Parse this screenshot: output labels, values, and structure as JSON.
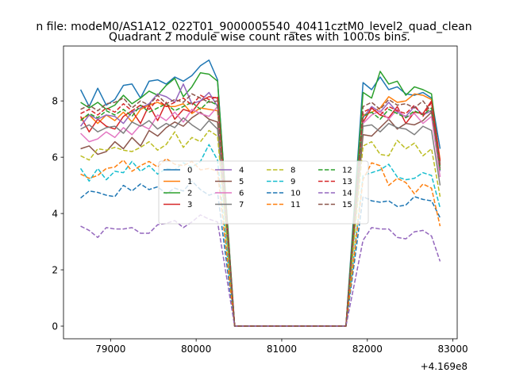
{
  "figure": {
    "suptitle": "n file: modeM0/AS1A12_022T01_9000005540_40411cztM0_level2_quad_clean",
    "title": "Quadrant 2 module wise count rates with 100.0s bins."
  },
  "chart_data": {
    "type": "line",
    "title": "Quadrant 2 module wise count rates with 100.0s bins.",
    "xlabel": "",
    "ylabel": "",
    "x_offset_label": "+4.169e8",
    "xlim": [
      78450,
      83050
    ],
    "ylim": [
      -0.45,
      9.95
    ],
    "xticks": [
      79000,
      80000,
      81000,
      82000,
      83000
    ],
    "xtick_labels": [
      "79000",
      "80000",
      "81000",
      "82000",
      "83000"
    ],
    "yticks": [
      0,
      2,
      4,
      6,
      8
    ],
    "ytick_labels": [
      "0",
      "2",
      "4",
      "6",
      "8"
    ],
    "grid": false,
    "legend": {
      "placement": "center",
      "ncol": 4
    },
    "x": {
      "seg1": [
        78650,
        78750,
        78850,
        78950,
        79050,
        79150,
        79250,
        79350,
        79450,
        79550,
        79650,
        79750,
        79850,
        79950,
        80050,
        80150,
        80250,
        80450
      ],
      "gap": [
        80450,
        81750
      ],
      "seg2": [
        81750,
        81950,
        82050,
        82150,
        82250,
        82350,
        82450,
        82550,
        82650,
        82750,
        82850
      ]
    },
    "series": [
      {
        "name": "0",
        "color": "#1f77b4",
        "dash": "solid",
        "seg1": [
          8.4,
          7.8,
          8.45,
          7.85,
          8.05,
          8.55,
          8.6,
          8.1,
          8.7,
          8.75,
          8.6,
          8.85,
          8.7,
          8.9,
          9.25,
          9.45,
          8.75,
          0.0
        ],
        "seg2": [
          0.0,
          8.65,
          8.4,
          8.85,
          8.4,
          8.5,
          8.25,
          8.2,
          8.3,
          8.1,
          6.3
        ]
      },
      {
        "name": "1",
        "color": "#ff7f0e",
        "dash": "solid",
        "seg1": [
          7.35,
          7.5,
          7.2,
          7.5,
          7.3,
          7.6,
          7.25,
          7.7,
          7.85,
          7.95,
          7.8,
          7.8,
          7.9,
          7.55,
          7.75,
          7.7,
          7.65,
          0.0
        ],
        "seg2": [
          0.0,
          7.5,
          7.6,
          7.75,
          8.15,
          7.95,
          8.0,
          8.25,
          8.2,
          8.05,
          5.9
        ]
      },
      {
        "name": "2",
        "color": "#2ca02c",
        "dash": "solid",
        "seg1": [
          7.95,
          7.75,
          7.95,
          7.7,
          7.85,
          8.2,
          7.9,
          8.1,
          8.35,
          8.2,
          8.55,
          8.8,
          8.15,
          8.5,
          9.0,
          8.95,
          8.7,
          0.0
        ],
        "seg2": [
          0.0,
          8.3,
          8.1,
          9.05,
          8.6,
          8.7,
          8.2,
          8.5,
          8.4,
          8.25,
          5.7
        ]
      },
      {
        "name": "3",
        "color": "#d62728",
        "dash": "solid",
        "seg1": [
          7.45,
          6.9,
          7.35,
          7.1,
          7.0,
          7.45,
          7.65,
          7.2,
          7.85,
          7.3,
          7.95,
          7.35,
          7.7,
          7.6,
          8.0,
          8.15,
          8.1,
          0.0
        ],
        "seg2": [
          0.0,
          7.25,
          7.75,
          7.5,
          7.4,
          7.8,
          7.2,
          7.6,
          7.55,
          8.0,
          5.85
        ]
      },
      {
        "name": "4",
        "color": "#9467bd",
        "dash": "solid",
        "seg1": [
          7.1,
          7.5,
          7.35,
          7.5,
          7.45,
          7.2,
          7.6,
          7.75,
          7.9,
          8.25,
          8.15,
          7.95,
          8.6,
          7.9,
          8.0,
          8.3,
          7.8,
          0.0
        ],
        "seg2": [
          0.0,
          7.4,
          7.8,
          7.6,
          7.95,
          7.6,
          7.45,
          7.8,
          7.5,
          7.65,
          5.5
        ]
      },
      {
        "name": "5",
        "color": "#8c564b",
        "dash": "solid",
        "seg1": [
          6.3,
          6.4,
          6.1,
          6.2,
          6.55,
          6.3,
          6.7,
          6.4,
          6.95,
          6.75,
          7.05,
          7.25,
          7.1,
          7.4,
          7.6,
          7.35,
          7.25,
          0.0
        ],
        "seg2": [
          0.0,
          6.8,
          6.75,
          7.05,
          7.35,
          7.0,
          7.2,
          7.15,
          7.3,
          7.6,
          5.6
        ]
      },
      {
        "name": "6",
        "color": "#e377c2",
        "dash": "solid",
        "seg1": [
          6.85,
          6.55,
          6.65,
          6.9,
          6.7,
          7.05,
          6.8,
          7.15,
          7.0,
          7.5,
          7.3,
          7.6,
          7.25,
          7.7,
          7.55,
          7.45,
          7.8,
          0.0
        ],
        "seg2": [
          0.0,
          7.2,
          7.5,
          7.65,
          7.35,
          7.7,
          7.4,
          7.55,
          7.2,
          7.45,
          5.3
        ]
      },
      {
        "name": "7",
        "color": "#7f7f7f",
        "dash": "solid",
        "seg1": [
          7.0,
          7.15,
          6.9,
          7.05,
          7.1,
          6.85,
          7.25,
          7.1,
          7.3,
          7.0,
          7.2,
          7.05,
          7.4,
          7.15,
          6.95,
          7.3,
          7.0,
          0.0
        ],
        "seg2": [
          0.0,
          7.1,
          7.15,
          6.9,
          7.2,
          7.05,
          7.0,
          6.8,
          7.1,
          6.95,
          5.0
        ]
      },
      {
        "name": "8",
        "color": "#bcbd22",
        "dash": "dashed",
        "seg1": [
          6.05,
          5.9,
          6.3,
          6.25,
          6.35,
          6.25,
          6.2,
          6.35,
          6.55,
          6.25,
          6.45,
          6.9,
          6.35,
          6.7,
          6.55,
          6.95,
          6.75,
          0.0
        ],
        "seg2": [
          0.0,
          6.4,
          6.55,
          6.1,
          6.05,
          6.6,
          6.3,
          6.5,
          6.05,
          6.3,
          4.6
        ]
      },
      {
        "name": "9",
        "color": "#17becf",
        "dash": "dashed",
        "seg1": [
          5.6,
          5.15,
          5.6,
          5.2,
          5.5,
          5.45,
          5.85,
          5.5,
          5.7,
          5.4,
          5.6,
          5.55,
          5.8,
          5.65,
          5.85,
          6.45,
          5.9,
          0.0
        ],
        "seg2": [
          0.0,
          5.35,
          5.45,
          5.55,
          5.75,
          5.3,
          5.2,
          5.25,
          5.45,
          5.35,
          4.2
        ]
      },
      {
        "name": "10",
        "color": "#1f77b4",
        "dash": "dashed",
        "seg1": [
          4.55,
          4.8,
          4.75,
          4.65,
          4.6,
          5.0,
          4.8,
          5.05,
          4.85,
          4.95,
          4.7,
          4.9,
          4.8,
          5.15,
          4.85,
          4.65,
          4.75,
          0.0
        ],
        "seg2": [
          0.0,
          4.6,
          4.45,
          4.4,
          4.45,
          4.25,
          4.3,
          4.6,
          4.5,
          4.45,
          3.85
        ]
      },
      {
        "name": "11",
        "color": "#ff7f0e",
        "dash": "dashed",
        "seg1": [
          5.4,
          5.25,
          5.35,
          5.6,
          5.65,
          5.9,
          5.5,
          5.7,
          5.85,
          5.65,
          5.95,
          5.75,
          5.7,
          5.85,
          5.55,
          5.6,
          5.5,
          0.0
        ],
        "seg2": [
          0.0,
          5.2,
          5.8,
          5.7,
          5.0,
          5.25,
          5.1,
          4.7,
          5.05,
          4.9,
          3.55
        ]
      },
      {
        "name": "12",
        "color": "#2ca02c",
        "dash": "dashed",
        "seg1": [
          7.3,
          7.55,
          7.4,
          7.65,
          7.5,
          7.7,
          7.45,
          7.85,
          7.6,
          7.75,
          7.9,
          7.65,
          7.8,
          7.95,
          7.7,
          8.0,
          7.85,
          0.0
        ],
        "seg2": [
          0.0,
          7.45,
          7.6,
          7.35,
          7.7,
          7.55,
          7.4,
          7.65,
          7.5,
          7.75,
          5.55
        ]
      },
      {
        "name": "13",
        "color": "#d62728",
        "dash": "dashed",
        "seg1": [
          7.55,
          7.7,
          7.5,
          7.75,
          7.6,
          7.9,
          7.65,
          7.85,
          7.7,
          8.05,
          7.8,
          7.95,
          8.1,
          7.85,
          8.2,
          8.05,
          8.15,
          0.0
        ],
        "seg2": [
          0.0,
          7.6,
          7.75,
          7.5,
          7.8,
          7.65,
          7.55,
          7.85,
          7.45,
          7.95,
          5.7
        ]
      },
      {
        "name": "14",
        "color": "#9467bd",
        "dash": "dashed",
        "seg1": [
          3.55,
          3.4,
          3.15,
          3.5,
          3.45,
          3.45,
          3.5,
          3.3,
          3.3,
          3.6,
          3.65,
          3.75,
          3.5,
          3.7,
          3.95,
          3.8,
          3.7,
          0.0
        ],
        "seg2": [
          0.0,
          3.05,
          3.5,
          3.45,
          3.45,
          3.15,
          3.1,
          3.35,
          3.4,
          3.2,
          2.3
        ]
      },
      {
        "name": "15",
        "color": "#8c564b",
        "dash": "dashed",
        "seg1": [
          7.7,
          7.85,
          7.65,
          7.9,
          7.95,
          8.1,
          7.75,
          8.0,
          7.85,
          8.2,
          7.9,
          8.05,
          7.95,
          8.25,
          8.1,
          7.95,
          8.0,
          0.0
        ],
        "seg2": [
          0.0,
          7.8,
          7.95,
          7.7,
          8.05,
          7.85,
          7.9,
          7.75,
          8.0,
          7.6,
          5.75
        ]
      }
    ]
  }
}
